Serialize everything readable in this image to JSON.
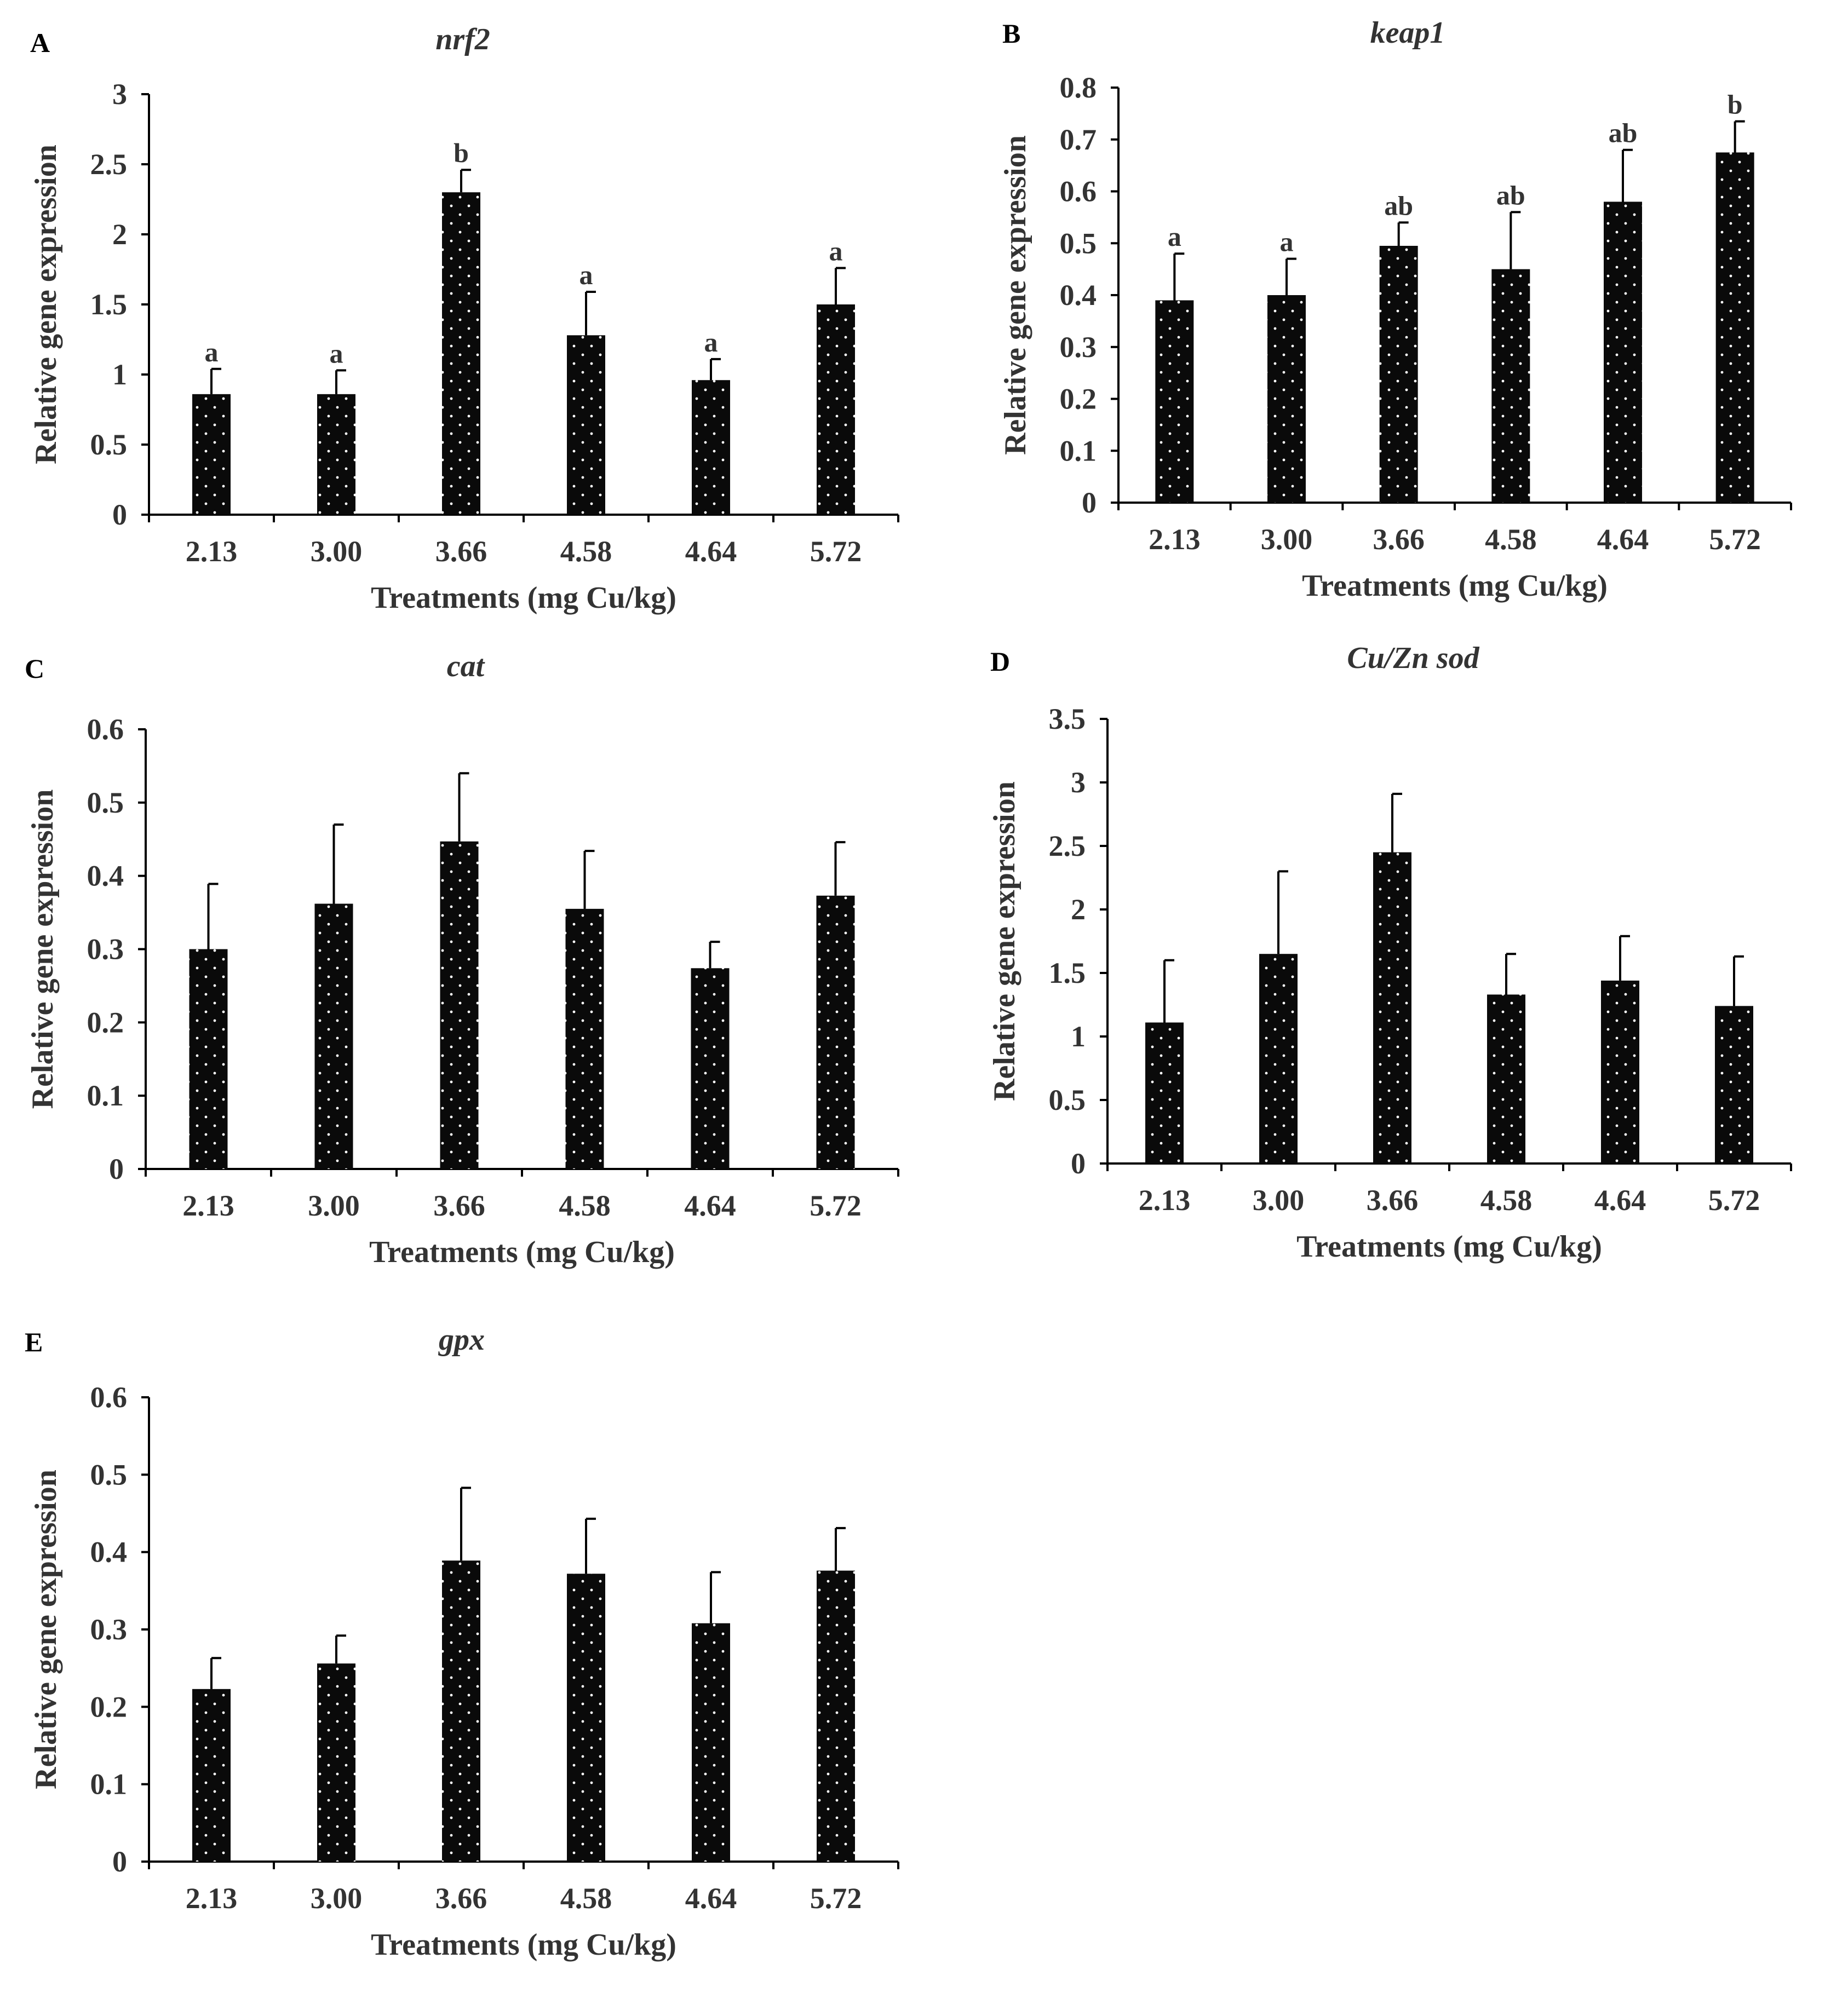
{
  "chart_data": [
    {
      "id": "A",
      "panel_label": "A",
      "type": "bar",
      "title": "nrf2",
      "xlabel": "Treatments (mg Cu/kg)",
      "ylabel": "Relative gene expression",
      "categories": [
        "2.13",
        "3.00",
        "3.66",
        "4.58",
        "4.64",
        "5.72"
      ],
      "values": [
        0.86,
        0.86,
        2.3,
        1.28,
        0.96,
        1.5
      ],
      "errors": [
        0.18,
        0.17,
        0.16,
        0.31,
        0.15,
        0.26
      ],
      "significance": [
        "a",
        "a",
        "b",
        "a",
        "a",
        "a"
      ],
      "ylim": [
        0,
        3
      ],
      "yticks": [
        0,
        0.5,
        1,
        1.5,
        2,
        2.5,
        3
      ],
      "ytick_labels": [
        "0",
        "0.5",
        "1",
        "1.5",
        "2",
        "2.5",
        "3"
      ]
    },
    {
      "id": "B",
      "panel_label": "B",
      "type": "bar",
      "title": "keap1",
      "xlabel": "Treatments (mg Cu/kg)",
      "ylabel": "Relative gene expression",
      "categories": [
        "2.13",
        "3.00",
        "3.66",
        "4.58",
        "4.64",
        "5.72"
      ],
      "values": [
        0.39,
        0.4,
        0.495,
        0.45,
        0.58,
        0.675
      ],
      "errors": [
        0.09,
        0.07,
        0.045,
        0.11,
        0.1,
        0.06
      ],
      "significance": [
        "a",
        "a",
        "ab",
        "ab",
        "ab",
        "b"
      ],
      "ylim": [
        0,
        0.8
      ],
      "yticks": [
        0,
        0.1,
        0.2,
        0.3,
        0.4,
        0.5,
        0.6,
        0.7,
        0.8
      ],
      "ytick_labels": [
        "0",
        "0.1",
        "0.2",
        "0.3",
        "0.4",
        "0.5",
        "0.6",
        "0.7",
        "0.8"
      ]
    },
    {
      "id": "C",
      "panel_label": "C",
      "type": "bar",
      "title": "cat",
      "xlabel": "Treatments (mg Cu/kg)",
      "ylabel": "Relative gene expression",
      "categories": [
        "2.13",
        "3.00",
        "3.66",
        "4.58",
        "4.64",
        "5.72"
      ],
      "values": [
        0.3,
        0.362,
        0.447,
        0.355,
        0.274,
        0.373
      ],
      "errors": [
        0.089,
        0.108,
        0.093,
        0.079,
        0.036,
        0.073
      ],
      "significance": [],
      "ylim": [
        0,
        0.6
      ],
      "yticks": [
        0,
        0.1,
        0.2,
        0.3,
        0.4,
        0.5,
        0.6
      ],
      "ytick_labels": [
        "0",
        "0.1",
        "0.2",
        "0.3",
        "0.4",
        "0.5",
        "0.6"
      ]
    },
    {
      "id": "D",
      "panel_label": "D",
      "type": "bar",
      "title": "Cu/Zn sod",
      "xlabel": "Treatments (mg Cu/kg)",
      "ylabel": "Relative gene expression",
      "categories": [
        "2.13",
        "3.00",
        "3.66",
        "4.58",
        "4.64",
        "5.72"
      ],
      "values": [
        1.11,
        1.65,
        2.45,
        1.33,
        1.44,
        1.24
      ],
      "errors": [
        0.49,
        0.65,
        0.46,
        0.32,
        0.35,
        0.39
      ],
      "significance": [],
      "ylim": [
        0,
        3.5
      ],
      "yticks": [
        0,
        0.5,
        1,
        1.5,
        2,
        2.5,
        3,
        3.5
      ],
      "ytick_labels": [
        "0",
        "0.5",
        "1",
        "1.5",
        "2",
        "2.5",
        "3",
        "3.5"
      ]
    },
    {
      "id": "E",
      "panel_label": "E",
      "type": "bar",
      "title": "gpx",
      "xlabel": "Treatments (mg Cu/kg)",
      "ylabel": "Relative gene expression",
      "categories": [
        "2.13",
        "3.00",
        "3.66",
        "4.58",
        "4.64",
        "5.72"
      ],
      "values": [
        0.223,
        0.256,
        0.389,
        0.372,
        0.308,
        0.376
      ],
      "errors": [
        0.04,
        0.036,
        0.094,
        0.071,
        0.066,
        0.055
      ],
      "significance": [],
      "ylim": [
        0,
        0.6
      ],
      "yticks": [
        0,
        0.1,
        0.2,
        0.3,
        0.4,
        0.5,
        0.6
      ],
      "ytick_labels": [
        "0",
        "0.1",
        "0.2",
        "0.3",
        "0.4",
        "0.5",
        "0.6"
      ]
    }
  ],
  "colors": {
    "bar_fill": "#0a0a0a",
    "bar_dots": "#ffffff",
    "axis": "#000000",
    "text": "#333333"
  }
}
